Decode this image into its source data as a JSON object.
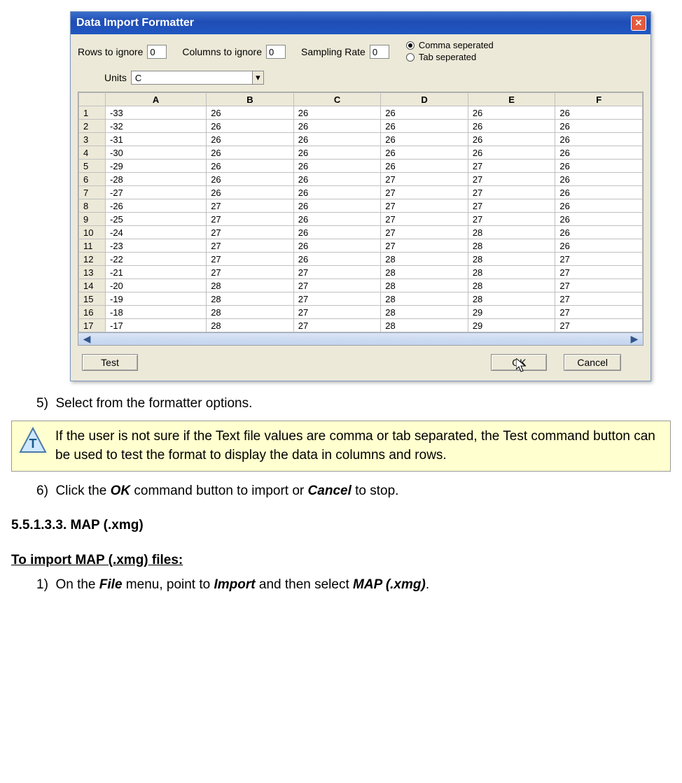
{
  "dialog": {
    "title": "Data Import Formatter",
    "rows_to_ignore_label": "Rows to ignore",
    "rows_to_ignore_value": "0",
    "columns_to_ignore_label": "Columns to ignore",
    "columns_to_ignore_value": "0",
    "sampling_rate_label": "Sampling Rate",
    "sampling_rate_value": "0",
    "radio_comma": "Comma seperated",
    "radio_tab": "Tab seperated",
    "radio_selected": "comma",
    "units_label": "Units",
    "units_value": "C",
    "buttons": {
      "test": "Test",
      "ok": "OK",
      "cancel": "Cancel"
    },
    "columns": [
      "A",
      "B",
      "C",
      "D",
      "E",
      "F"
    ],
    "rows": [
      {
        "n": "1",
        "cells": [
          "-33",
          "26",
          "26",
          "26",
          "26",
          "26"
        ]
      },
      {
        "n": "2",
        "cells": [
          "-32",
          "26",
          "26",
          "26",
          "26",
          "26"
        ]
      },
      {
        "n": "3",
        "cells": [
          "-31",
          "26",
          "26",
          "26",
          "26",
          "26"
        ]
      },
      {
        "n": "4",
        "cells": [
          "-30",
          "26",
          "26",
          "26",
          "26",
          "26"
        ]
      },
      {
        "n": "5",
        "cells": [
          "-29",
          "26",
          "26",
          "26",
          "27",
          "26"
        ]
      },
      {
        "n": "6",
        "cells": [
          "-28",
          "26",
          "26",
          "27",
          "27",
          "26"
        ]
      },
      {
        "n": "7",
        "cells": [
          "-27",
          "26",
          "26",
          "27",
          "27",
          "26"
        ]
      },
      {
        "n": "8",
        "cells": [
          "-26",
          "27",
          "26",
          "27",
          "27",
          "26"
        ]
      },
      {
        "n": "9",
        "cells": [
          "-25",
          "27",
          "26",
          "27",
          "27",
          "26"
        ]
      },
      {
        "n": "10",
        "cells": [
          "-24",
          "27",
          "26",
          "27",
          "28",
          "26"
        ]
      },
      {
        "n": "11",
        "cells": [
          "-23",
          "27",
          "26",
          "27",
          "28",
          "26"
        ]
      },
      {
        "n": "12",
        "cells": [
          "-22",
          "27",
          "26",
          "28",
          "28",
          "27"
        ]
      },
      {
        "n": "13",
        "cells": [
          "-21",
          "27",
          "27",
          "28",
          "28",
          "27"
        ]
      },
      {
        "n": "14",
        "cells": [
          "-20",
          "28",
          "27",
          "28",
          "28",
          "27"
        ]
      },
      {
        "n": "15",
        "cells": [
          "-19",
          "28",
          "27",
          "28",
          "28",
          "27"
        ]
      },
      {
        "n": "16",
        "cells": [
          "-18",
          "28",
          "27",
          "28",
          "29",
          "27"
        ]
      },
      {
        "n": "17",
        "cells": [
          "-17",
          "28",
          "27",
          "28",
          "29",
          "27"
        ]
      }
    ],
    "colors": {
      "titlebar_start": "#3a6ecb",
      "titlebar_end": "#2157c2",
      "body": "#ece9d8",
      "close": "#e45b3e"
    }
  },
  "doc": {
    "step5": "5)  Select from the formatter options.",
    "tip_text": "If the user is not sure if the Text file values are comma or tab separated, the Test command button can be used to test the format to display the data in columns and rows.",
    "step6_pre": "6)  Click the ",
    "step6_ok": "OK",
    "step6_mid": " command button to import or ",
    "step6_cancel": "Cancel",
    "step6_post": " to stop.",
    "section": "5.5.1.3.3. MAP (.xmg)",
    "tohdr": "To import MAP (.xmg) files:",
    "step1_pre": "1)  On the ",
    "step1_file": "File",
    "step1_mid1": " menu, point to ",
    "step1_import": "Import",
    "step1_mid2": " and then select ",
    "step1_map": "MAP (.xmg)",
    "step1_post": ".",
    "tipbox_bg": "#ffffcf"
  }
}
